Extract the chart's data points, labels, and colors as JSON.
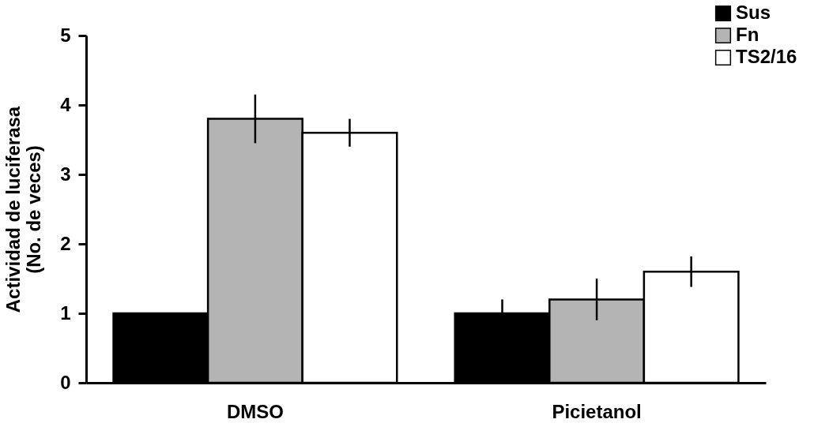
{
  "chart_data": {
    "type": "bar",
    "ylabel": "Actividad de luciferasa\n(No. de veces)",
    "categories": [
      "DMSO",
      "Picietanol"
    ],
    "series": [
      {
        "name": "Sus",
        "color": "#000000",
        "values": [
          1.0,
          1.0
        ],
        "errors": [
          null,
          0.2
        ]
      },
      {
        "name": "Fn",
        "color": "#b4b4b4",
        "values": [
          3.8,
          1.2
        ],
        "errors": [
          0.35,
          0.3
        ]
      },
      {
        "name": "TS2/16",
        "color": "#ffffff",
        "values": [
          3.6,
          1.6
        ],
        "errors": [
          0.2,
          0.22
        ]
      }
    ],
    "ylim": [
      0,
      5
    ],
    "yticks": [
      0,
      1,
      2,
      3,
      4,
      5
    ],
    "grid": false,
    "legend": "top right"
  }
}
